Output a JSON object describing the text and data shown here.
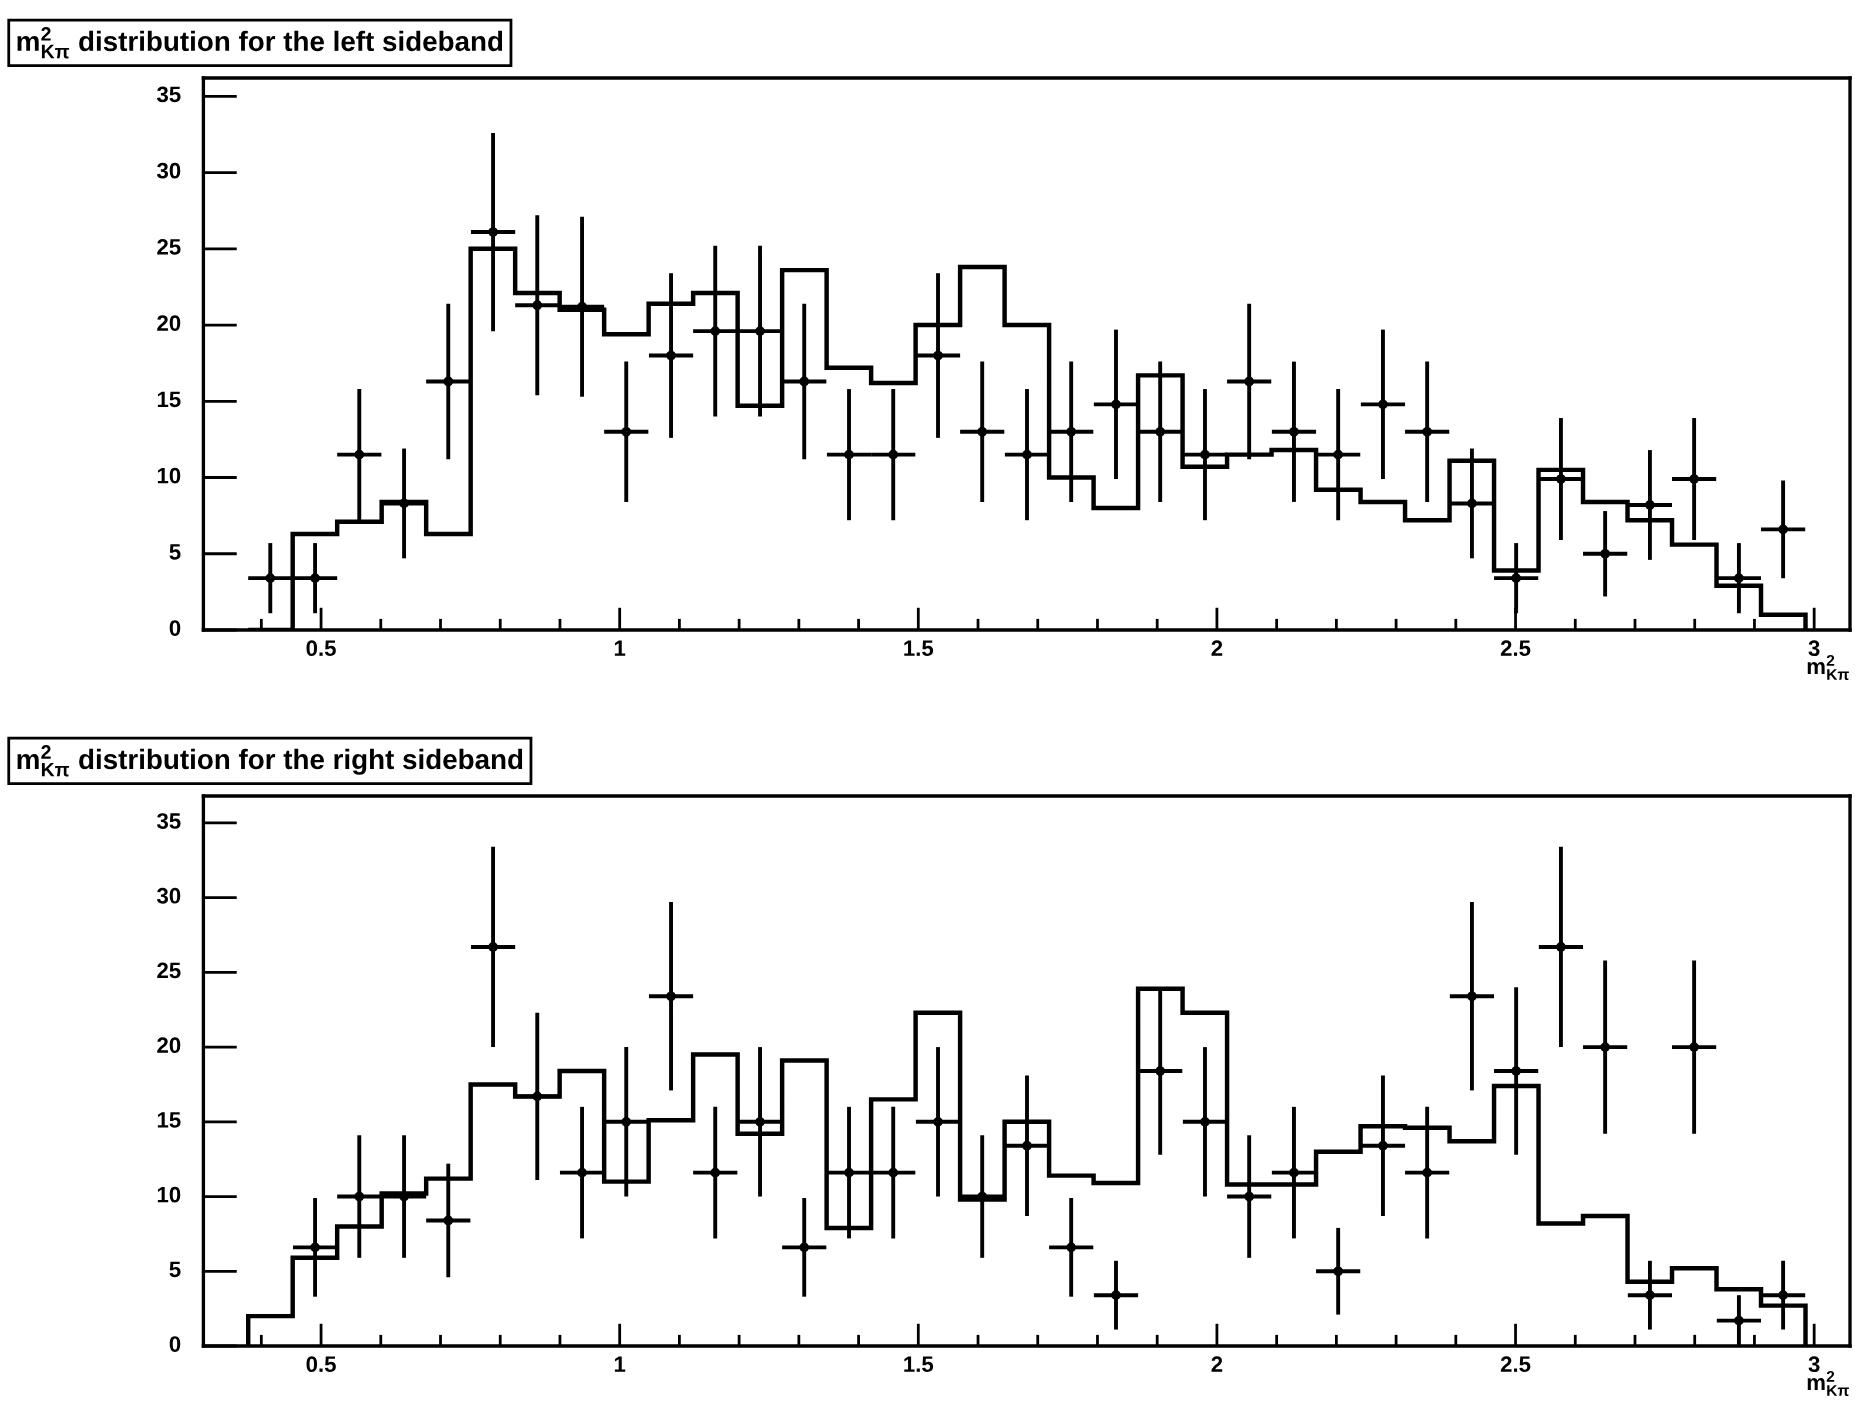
{
  "chart_data": [
    {
      "type": "histogram",
      "title": "m$^{2}$$_{Kπ}$ distribution for the left sideband",
      "xlabel": "m$^{2}$$_{Kπ}$",
      "xlim": [
        0.303,
        3.06
      ],
      "xticks": [
        {
          "value": 0.5,
          "label": "0.5"
        },
        1,
        {
          "value": 1.5,
          "label": "1.5"
        },
        2,
        {
          "value": 2.5,
          "label": "2.5"
        },
        3
      ],
      "ylim": [
        0,
        36.2
      ],
      "yticks": [
        0,
        5,
        10,
        15,
        20,
        25,
        30,
        35
      ],
      "grid": false,
      "legend": false,
      "series": [
        {
          "type": "histogram",
          "color": "#000000",
          "bins": [
            0.378,
            0.4525,
            0.527,
            0.6015,
            0.676,
            0.7505,
            0.825,
            0.8995,
            0.974,
            1.0485,
            1.123,
            1.1975,
            1.272,
            1.3465,
            1.421,
            1.4955,
            1.57,
            1.6445,
            1.719,
            1.7935,
            1.868,
            1.9425,
            2.017,
            2.0915,
            2.166,
            2.2405,
            2.315,
            2.3895,
            2.464,
            2.5385,
            2.613,
            2.6875,
            2.762,
            2.8365,
            2.911,
            2.9855
          ],
          "values": [
            0,
            6.3,
            7.1,
            8.4,
            6.3,
            25,
            22.1,
            21,
            19.4,
            21.4,
            22.1,
            14.7,
            23.6,
            17.2,
            16.2,
            20,
            23.8,
            20,
            10,
            8,
            16.7,
            10.7,
            11.5,
            11.8,
            9.2,
            8.4,
            7.2,
            11.1,
            3.9,
            10.5,
            8.4,
            7.2,
            5.6,
            2.9,
            1
          ]
        },
        {
          "type": "scatter",
          "color": "#000000",
          "x": [
            0.415,
            0.49,
            0.564,
            0.639,
            0.713,
            0.788,
            0.862,
            0.937,
            1.011,
            1.086,
            1.16,
            1.235,
            1.309,
            1.384,
            1.458,
            1.533,
            1.607,
            1.682,
            1.756,
            1.831,
            1.905,
            1.98,
            2.054,
            2.129,
            2.203,
            2.278,
            2.352,
            2.427,
            2.501,
            2.576,
            2.65,
            2.725,
            2.799,
            2.874,
            2.948
          ],
          "values": [
            3.4,
            3.4,
            11.5,
            8.3,
            16.3,
            26.1,
            21.3,
            21.2,
            13,
            18,
            19.6,
            19.6,
            16.3,
            11.5,
            11.5,
            18,
            13,
            11.5,
            13,
            14.8,
            13,
            11.5,
            16.3,
            13,
            11.5,
            14.8,
            13,
            8.3,
            3.4,
            9.9,
            5,
            8.2,
            9.9,
            3.4,
            6.6
          ],
          "errors": [
            2.3,
            2.3,
            4.3,
            3.6,
            5.1,
            6.5,
            5.9,
            5.9,
            4.6,
            5.4,
            5.6,
            5.6,
            5.1,
            4.3,
            4.3,
            5.4,
            4.6,
            4.3,
            4.6,
            4.9,
            4.6,
            4.3,
            5.1,
            4.6,
            4.3,
            4.9,
            4.6,
            3.6,
            2.3,
            4,
            2.8,
            3.6,
            4,
            2.3,
            3.2
          ],
          "xerrors": [
            0.037,
            0.037,
            0.037,
            0.037,
            0.037,
            0.037,
            0.037,
            0.037,
            0.037,
            0.037,
            0.037,
            0.037,
            0.037,
            0.037,
            0.037,
            0.037,
            0.037,
            0.037,
            0.037,
            0.037,
            0.037,
            0.037,
            0.037,
            0.037,
            0.037,
            0.037,
            0.037,
            0.037,
            0.037,
            0.037,
            0.037,
            0.037,
            0.037,
            0.037,
            0.037
          ]
        }
      ]
    },
    {
      "type": "histogram",
      "title": "m$^{2}$$_{Kπ}$ distribution for the right sideband",
      "xlabel": "m$^{2}$$_{Kπ}$",
      "xlim": [
        0.303,
        3.06
      ],
      "xticks": [
        {
          "value": 0.5,
          "label": "0.5"
        },
        1,
        {
          "value": 1.5,
          "label": "1.5"
        },
        2,
        {
          "value": 2.5,
          "label": "2.5"
        },
        3
      ],
      "ylim": [
        0,
        36.8
      ],
      "yticks": [
        0,
        5,
        10,
        15,
        20,
        25,
        30,
        35
      ],
      "grid": false,
      "legend": false,
      "series": [
        {
          "type": "histogram",
          "color": "#000000",
          "bins": [
            0.378,
            0.4525,
            0.527,
            0.6015,
            0.676,
            0.7505,
            0.825,
            0.8995,
            0.974,
            1.0485,
            1.123,
            1.1975,
            1.272,
            1.3465,
            1.421,
            1.4955,
            1.57,
            1.6445,
            1.719,
            1.7935,
            1.868,
            1.9425,
            2.017,
            2.0915,
            2.166,
            2.2405,
            2.315,
            2.3895,
            2.464,
            2.5385,
            2.613,
            2.6875,
            2.762,
            2.8365,
            2.911,
            2.9855
          ],
          "values": [
            2,
            5.9,
            8,
            10.2,
            11.2,
            17.5,
            16.7,
            18.4,
            11,
            15.1,
            19.5,
            14.2,
            19.1,
            7.9,
            16.5,
            22.3,
            9.8,
            15,
            11.4,
            10.9,
            23.9,
            22.3,
            10.8,
            10.8,
            13,
            14.7,
            14.6,
            13.7,
            17.4,
            8.2,
            8.7,
            4.3,
            5.2,
            3.8,
            2.7
          ]
        },
        {
          "type": "scatter",
          "color": "#000000",
          "x": [
            0.49,
            0.564,
            0.639,
            0.713,
            0.788,
            0.862,
            0.937,
            1.011,
            1.086,
            1.16,
            1.235,
            1.309,
            1.384,
            1.458,
            1.533,
            1.607,
            1.682,
            1.756,
            1.831,
            1.905,
            1.98,
            2.054,
            2.129,
            2.203,
            2.278,
            2.352,
            2.427,
            2.501,
            2.576,
            2.65,
            2.725,
            2.799,
            2.874,
            2.948
          ],
          "values": [
            6.6,
            10,
            10,
            8.4,
            26.7,
            16.7,
            11.6,
            15,
            23.4,
            11.6,
            15,
            6.6,
            11.6,
            11.6,
            15,
            10,
            13.4,
            6.6,
            3.4,
            18.4,
            15,
            10,
            11.6,
            5,
            13.4,
            11.6,
            23.4,
            18.4,
            26.7,
            20,
            3.4,
            20,
            1.7,
            3.4
          ],
          "errors": [
            3.3,
            4.1,
            4.1,
            3.8,
            6.7,
            5.6,
            4.4,
            5,
            6.3,
            4.4,
            5,
            3.3,
            4.4,
            4.4,
            5,
            4.1,
            4.7,
            3.3,
            2.3,
            5.6,
            5,
            4.1,
            4.4,
            2.9,
            4.7,
            4.4,
            6.3,
            5.6,
            6.7,
            5.8,
            2.3,
            5.8,
            1.7,
            2.3
          ],
          "xerrors": [
            0.037,
            0.037,
            0.037,
            0.037,
            0.037,
            0.037,
            0.037,
            0.037,
            0.037,
            0.037,
            0.037,
            0.037,
            0.037,
            0.037,
            0.037,
            0.037,
            0.037,
            0.037,
            0.037,
            0.037,
            0.037,
            0.037,
            0.037,
            0.037,
            0.037,
            0.037,
            0.037,
            0.037,
            0.037,
            0.037,
            0.037,
            0.037,
            0.037,
            0.037
          ]
        }
      ]
    }
  ]
}
